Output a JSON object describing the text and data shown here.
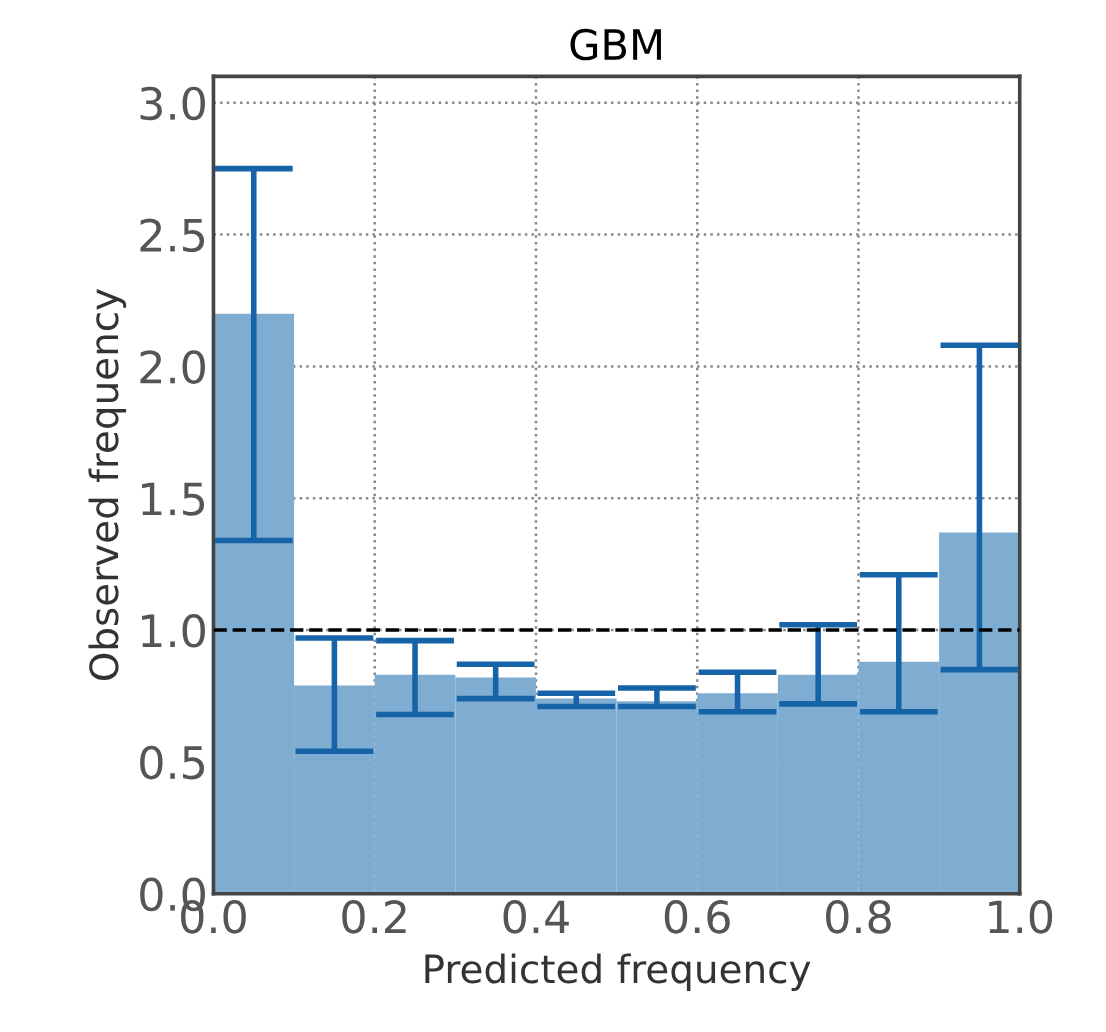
{
  "chart_data": {
    "type": "histogram",
    "title": "GBM",
    "xlabel": "Predicted frequency",
    "ylabel": "Observed frequency",
    "bins": [
      0.0,
      0.1,
      0.2,
      0.3,
      0.4,
      0.5,
      0.6,
      0.7,
      0.8,
      0.9,
      1.0
    ],
    "values": [
      2.2,
      0.79,
      0.83,
      0.82,
      0.74,
      0.73,
      0.76,
      0.83,
      0.88,
      1.37
    ],
    "errors": [
      [
        1.34,
        2.75
      ],
      [
        0.54,
        0.97
      ],
      [
        0.68,
        0.96
      ],
      [
        0.74,
        0.87
      ],
      [
        0.71,
        0.76
      ],
      [
        0.71,
        0.78
      ],
      [
        0.69,
        0.84
      ],
      [
        0.72,
        1.02
      ],
      [
        0.69,
        1.21
      ],
      [
        0.85,
        2.08
      ]
    ],
    "color": "#7eadd1",
    "xlim": [
      0.0,
      1.0
    ],
    "xticks": [
      {
        "value": 0.0,
        "label": "0.0"
      },
      0.2,
      0.4,
      0.6,
      0.8,
      {
        "value": 1.0,
        "label": "1.0"
      }
    ],
    "ylim": [
      0.0,
      3.1
    ],
    "yticks": [
      {
        "value": 0.0,
        "label": "0.0"
      },
      0.5,
      {
        "value": 1.0,
        "label": "1.0"
      },
      1.5,
      {
        "value": 2.0,
        "label": "2.0"
      },
      2.5,
      {
        "value": 3.0,
        "label": "3.0"
      }
    ],
    "ref_lines": [
      {
        "axis": "y",
        "value": 1.0,
        "label": null,
        "color": "#000000",
        "line_style": "dashed"
      }
    ],
    "grid": true
  }
}
